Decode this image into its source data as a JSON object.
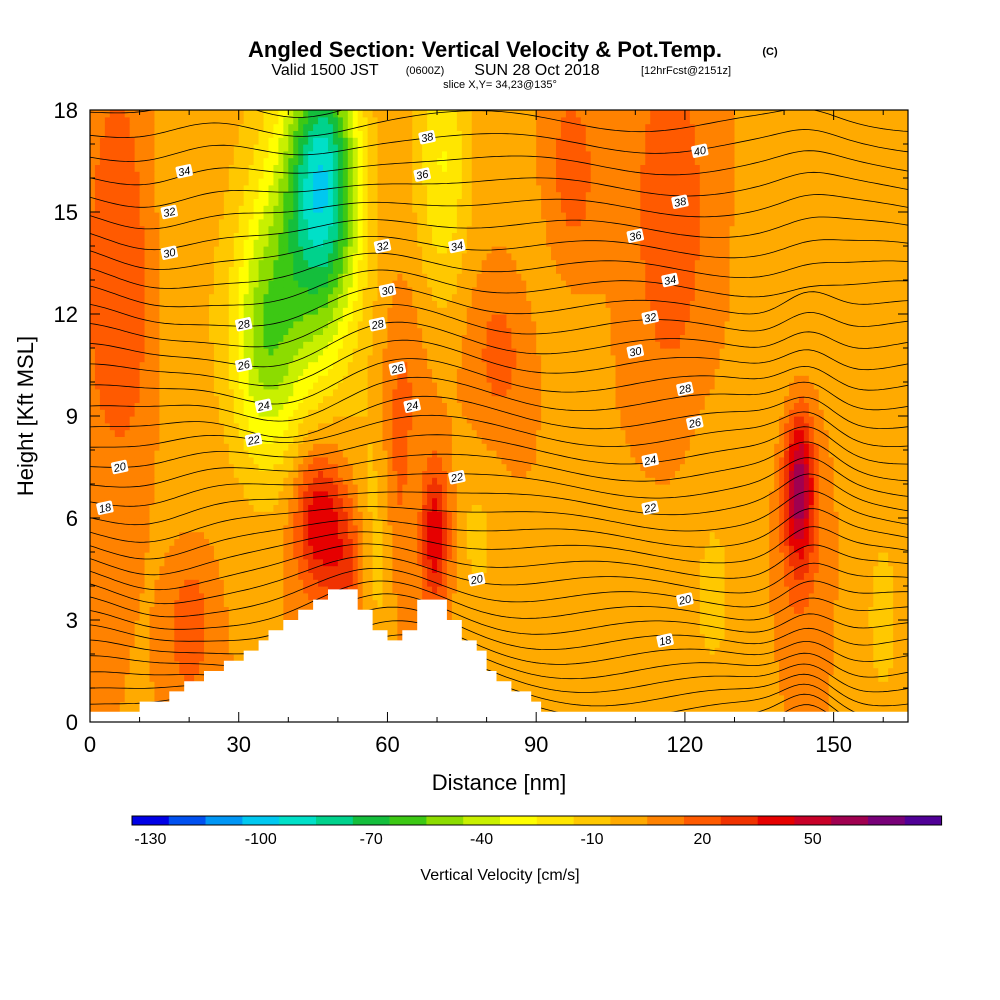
{
  "title": {
    "main": "Angled Section: Vertical Velocity & Pot.Temp.",
    "main_units": "(C)",
    "valid_prefix": "Valid 1500 JST",
    "valid_zulu": "(0600Z)",
    "valid_date": "SUN 28 Oct 2018",
    "valid_fcst": "[12hrFcst@2151z]",
    "slice": "slice X,Y= 34,23@135°"
  },
  "chart_data": {
    "type": "heatmap",
    "xlabel": "Distance [nm]",
    "ylabel": "Height [Kft MSL]",
    "xlim": [
      0,
      165
    ],
    "ylim": [
      0,
      18
    ],
    "x_ticks": [
      0,
      30,
      60,
      90,
      120,
      150
    ],
    "y_ticks": [
      0,
      3,
      6,
      9,
      12,
      15,
      18
    ],
    "x_tick_labels": [
      "0",
      "30",
      "60",
      "90",
      "120",
      "150"
    ],
    "y_tick_labels": [
      "0",
      "3",
      "6",
      "9",
      "12",
      "15",
      "18"
    ],
    "colorbar": {
      "label": "Vertical Velocity [cm/s]",
      "levels_min": -135,
      "level_step": 10,
      "tick_values": [
        -130,
        -100,
        -70,
        -40,
        -10,
        20,
        50
      ],
      "tick_labels": [
        "-130",
        "-100",
        "-70",
        "-40",
        "-10",
        "20",
        "50"
      ],
      "colors": [
        "#0000e6",
        "#0050f0",
        "#0096f5",
        "#00c8f0",
        "#00e0c8",
        "#00d28c",
        "#14be3c",
        "#3cc814",
        "#8cdc00",
        "#c8f000",
        "#ffff00",
        "#ffe600",
        "#ffc800",
        "#ffaa00",
        "#ff8200",
        "#ff5a00",
        "#f03200",
        "#e60000",
        "#c80028",
        "#a00050",
        "#780078",
        "#500096"
      ]
    },
    "terrain_kft": [
      [
        0,
        0.3
      ],
      [
        10,
        0.3
      ],
      [
        10,
        0.6
      ],
      [
        16,
        0.6
      ],
      [
        16,
        0.9
      ],
      [
        19,
        0.9
      ],
      [
        19,
        1.2
      ],
      [
        23,
        1.2
      ],
      [
        23,
        1.5
      ],
      [
        27,
        1.5
      ],
      [
        27,
        1.8
      ],
      [
        31,
        1.8
      ],
      [
        31,
        2.1
      ],
      [
        34,
        2.1
      ],
      [
        34,
        2.4
      ],
      [
        36,
        2.4
      ],
      [
        36,
        2.7
      ],
      [
        39,
        2.7
      ],
      [
        39,
        3.0
      ],
      [
        42,
        3.0
      ],
      [
        42,
        3.3
      ],
      [
        45,
        3.3
      ],
      [
        45,
        3.6
      ],
      [
        48,
        3.6
      ],
      [
        48,
        3.9
      ],
      [
        54,
        3.9
      ],
      [
        54,
        3.3
      ],
      [
        57,
        3.3
      ],
      [
        57,
        2.7
      ],
      [
        60,
        2.7
      ],
      [
        60,
        2.4
      ],
      [
        63,
        2.4
      ],
      [
        63,
        2.7
      ],
      [
        66,
        2.7
      ],
      [
        66,
        3.6
      ],
      [
        72,
        3.6
      ],
      [
        72,
        3.0
      ],
      [
        75,
        3.0
      ],
      [
        75,
        2.4
      ],
      [
        78,
        2.4
      ],
      [
        78,
        2.1
      ],
      [
        80,
        2.1
      ],
      [
        80,
        1.5
      ],
      [
        82,
        1.5
      ],
      [
        82,
        1.2
      ],
      [
        85,
        1.2
      ],
      [
        85,
        0.9
      ],
      [
        89,
        0.9
      ],
      [
        89,
        0.6
      ],
      [
        91,
        0.6
      ],
      [
        91,
        0.3
      ],
      [
        165,
        0.3
      ]
    ],
    "w_field_base": 5,
    "w_features": [
      {
        "x": 6,
        "z": 14.5,
        "sx": 5,
        "sz": 4,
        "value": 15
      },
      {
        "x": 7,
        "z": 11,
        "sx": 6,
        "sz": 3,
        "value": 8
      },
      {
        "x": 18,
        "z": 14,
        "sx": 5,
        "sz": 6,
        "value": -10
      },
      {
        "x": 20,
        "z": 2.8,
        "sx": 3,
        "sz": 1.5,
        "value": 20
      },
      {
        "x": 35,
        "z": 11,
        "sx": 5,
        "sz": 2.5,
        "value": -35
      },
      {
        "x": 37,
        "z": 13.5,
        "sx": 6,
        "sz": 4,
        "value": -25
      },
      {
        "x": 47,
        "z": 16.5,
        "sx": 5,
        "sz": 2.5,
        "value": -70
      },
      {
        "x": 47,
        "z": 13.5,
        "sx": 6,
        "sz": 3,
        "value": -40
      },
      {
        "x": 46,
        "z": 6,
        "sx": 3.5,
        "sz": 1.5,
        "value": 40
      },
      {
        "x": 52,
        "z": 4.5,
        "sx": 3,
        "sz": 1.5,
        "value": 22
      },
      {
        "x": 58,
        "z": 5.5,
        "sx": 3,
        "sz": 3,
        "value": -20
      },
      {
        "x": 63,
        "z": 7.5,
        "sx": 3.5,
        "sz": 3,
        "value": 22
      },
      {
        "x": 66,
        "z": 6,
        "sx": 2,
        "sz": 2,
        "value": -25
      },
      {
        "x": 69,
        "z": 5.5,
        "sx": 2.5,
        "sz": 1.5,
        "value": 42
      },
      {
        "x": 71,
        "z": 16.5,
        "sx": 4,
        "sz": 3,
        "value": -30
      },
      {
        "x": 78,
        "z": 5.5,
        "sx": 4,
        "sz": 2,
        "value": -12
      },
      {
        "x": 83,
        "z": 11,
        "sx": 5,
        "sz": 2,
        "value": 18
      },
      {
        "x": 89,
        "z": 13,
        "sx": 8,
        "sz": 3,
        "value": -8
      },
      {
        "x": 97,
        "z": 16,
        "sx": 4,
        "sz": 2,
        "value": 18
      },
      {
        "x": 110,
        "z": 3,
        "sx": 12,
        "sz": 2.5,
        "value": -5
      },
      {
        "x": 117,
        "z": 15,
        "sx": 5,
        "sz": 3.5,
        "value": 20
      },
      {
        "x": 126,
        "z": 4,
        "sx": 4,
        "sz": 3,
        "value": -10
      },
      {
        "x": 140,
        "z": 11,
        "sx": 5,
        "sz": 5,
        "value": -10
      },
      {
        "x": 143,
        "z": 7,
        "sx": 2,
        "sz": 1.5,
        "value": 45
      },
      {
        "x": 143,
        "z": 6,
        "sx": 3.5,
        "sz": 2.5,
        "value": 20
      },
      {
        "x": 155,
        "z": 14,
        "sx": 6,
        "sz": 4,
        "value": -8
      },
      {
        "x": 160,
        "z": 3,
        "sx": 4,
        "sz": 3,
        "value": -12
      }
    ],
    "theta_contour_levels": [
      18,
      20,
      22,
      24,
      26,
      28,
      30,
      32,
      34,
      36,
      38,
      40
    ],
    "theta_labels": [
      {
        "text": "40",
        "x": 123,
        "z": 16.8
      },
      {
        "text": "38",
        "x": 119,
        "z": 15.3
      },
      {
        "text": "36",
        "x": 110,
        "z": 14.3
      },
      {
        "text": "34",
        "x": 117,
        "z": 13.0
      },
      {
        "text": "32",
        "x": 113,
        "z": 11.9
      },
      {
        "text": "30",
        "x": 110,
        "z": 10.9
      },
      {
        "text": "28",
        "x": 120,
        "z": 9.8
      },
      {
        "text": "26",
        "x": 122,
        "z": 8.8
      },
      {
        "text": "24",
        "x": 113,
        "z": 7.7
      },
      {
        "text": "22",
        "x": 113,
        "z": 6.3
      },
      {
        "text": "20",
        "x": 120,
        "z": 3.6
      },
      {
        "text": "18",
        "x": 116,
        "z": 2.4
      },
      {
        "text": "38",
        "x": 68,
        "z": 17.2
      },
      {
        "text": "36",
        "x": 67,
        "z": 16.1
      },
      {
        "text": "34",
        "x": 74,
        "z": 14.0
      },
      {
        "text": "32",
        "x": 59,
        "z": 14.0
      },
      {
        "text": "30",
        "x": 60,
        "z": 12.7
      },
      {
        "text": "28",
        "x": 58,
        "z": 11.7
      },
      {
        "text": "26",
        "x": 62,
        "z": 10.4
      },
      {
        "text": "24",
        "x": 65,
        "z": 9.3
      },
      {
        "text": "22",
        "x": 74,
        "z": 7.2
      },
      {
        "text": "20",
        "x": 78,
        "z": 4.2
      },
      {
        "text": "34",
        "x": 19,
        "z": 16.2
      },
      {
        "text": "32",
        "x": 16,
        "z": 15.0
      },
      {
        "text": "30",
        "x": 16,
        "z": 13.8
      },
      {
        "text": "28",
        "x": 31,
        "z": 11.7
      },
      {
        "text": "26",
        "x": 31,
        "z": 10.5
      },
      {
        "text": "24",
        "x": 35,
        "z": 9.3
      },
      {
        "text": "22",
        "x": 33,
        "z": 8.3
      },
      {
        "text": "20",
        "x": 6,
        "z": 7.5
      },
      {
        "text": "18",
        "x": 3,
        "z": 6.3
      }
    ]
  }
}
